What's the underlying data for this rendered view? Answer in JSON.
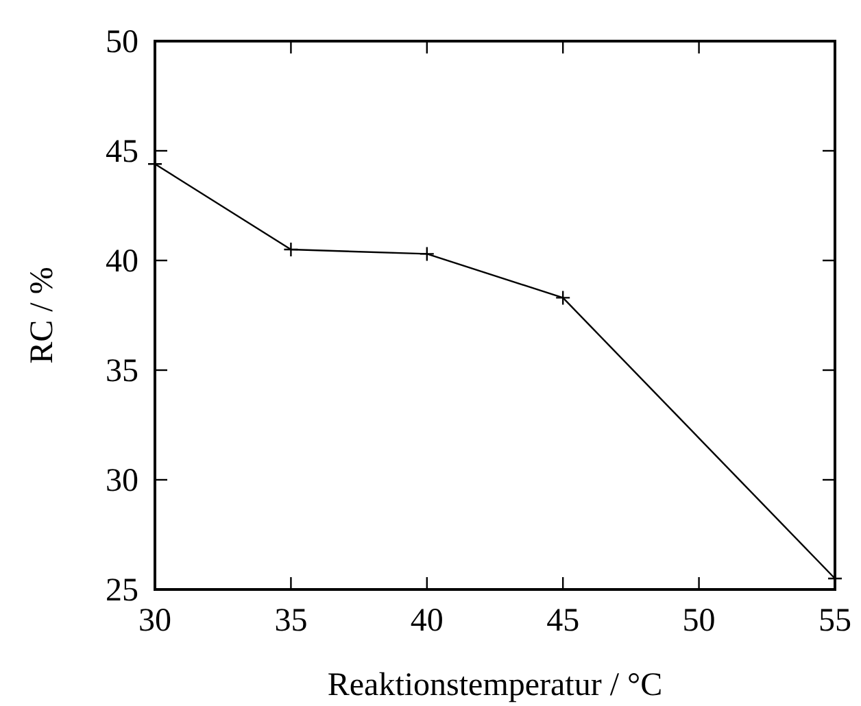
{
  "chart_data": {
    "type": "line",
    "xlabel": "Reaktionstemperatur / °C",
    "ylabel": "RC / %",
    "x": [
      30,
      35,
      40,
      45,
      55
    ],
    "series": [
      {
        "color": "#000000",
        "values": [
          44.4,
          40.5,
          40.3,
          38.3,
          25.5
        ]
      }
    ],
    "xlim": [
      30,
      55
    ],
    "xticks": [
      30,
      35,
      40,
      45,
      50,
      55
    ],
    "ylim": [
      25,
      50
    ],
    "yticks": [
      25,
      30,
      35,
      40,
      45,
      50
    ],
    "grid": false,
    "marker": "cross",
    "line_style": "solid"
  }
}
